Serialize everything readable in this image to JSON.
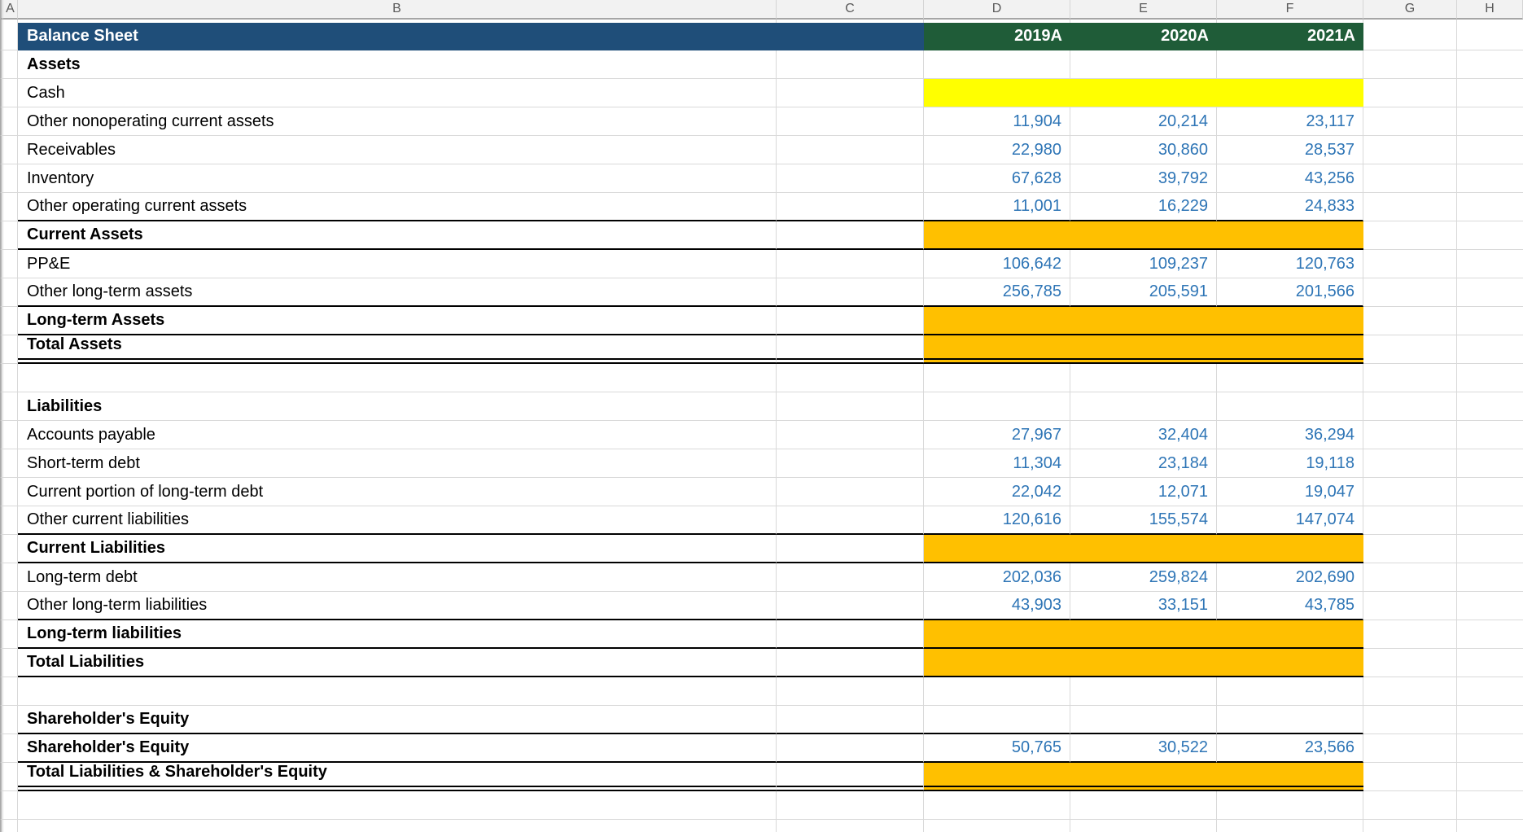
{
  "sheet": {
    "column_headers": [
      "A",
      "B",
      "C",
      "D",
      "E",
      "F",
      "G",
      "H"
    ],
    "title": "Balance Sheet",
    "year_headers": [
      "2019A",
      "2020A",
      "2021A"
    ],
    "colors": {
      "title_bg": "#1F4E79",
      "year_header_bg": "#1F5C38",
      "input_fill_yellow": "#FFFF00",
      "calc_fill_orange": "#FFC000",
      "number_text_blue": "#2E75B6",
      "gridline": "#D9D9D9"
    },
    "rows": [
      {
        "label": "Assets",
        "bold": true
      },
      {
        "label": "Cash",
        "fill": "yellow"
      },
      {
        "label": "Other nonoperating current assets",
        "values": [
          "11,904",
          "20,214",
          "23,117"
        ]
      },
      {
        "label": "Receivables",
        "values": [
          "22,980",
          "30,860",
          "28,537"
        ]
      },
      {
        "label": "Inventory",
        "values": [
          "67,628",
          "39,792",
          "43,256"
        ]
      },
      {
        "label": "Other operating current assets",
        "values": [
          "11,001",
          "16,229",
          "24,833"
        ],
        "border_bottom": "single"
      },
      {
        "label": "Current Assets",
        "bold": true,
        "fill": "orange",
        "border_bottom": "single"
      },
      {
        "label": "PP&E",
        "values": [
          "106,642",
          "109,237",
          "120,763"
        ]
      },
      {
        "label": "Other long-term assets",
        "values": [
          "256,785",
          "205,591",
          "201,566"
        ],
        "border_bottom": "single"
      },
      {
        "label": "Long-term Assets",
        "bold": true,
        "fill": "orange",
        "border_bottom": "single"
      },
      {
        "label": "Total Assets",
        "bold": true,
        "fill": "orange",
        "border_bottom": "double"
      },
      {
        "label": ""
      },
      {
        "label": "Liabilities",
        "bold": true
      },
      {
        "label": "Accounts payable",
        "values": [
          "27,967",
          "32,404",
          "36,294"
        ]
      },
      {
        "label": "Short-term debt",
        "values": [
          "11,304",
          "23,184",
          "19,118"
        ]
      },
      {
        "label": "Current portion of long-term debt",
        "values": [
          "22,042",
          "12,071",
          "19,047"
        ]
      },
      {
        "label": "Other current liabilities",
        "values": [
          "120,616",
          "155,574",
          "147,074"
        ],
        "border_bottom": "single"
      },
      {
        "label": "Current Liabilities",
        "bold": true,
        "fill": "orange",
        "border_bottom": "single"
      },
      {
        "label": "Long-term debt",
        "values": [
          "202,036",
          "259,824",
          "202,690"
        ]
      },
      {
        "label": "Other long-term liabilities",
        "values": [
          "43,903",
          "33,151",
          "43,785"
        ],
        "border_bottom": "single"
      },
      {
        "label": "Long-term liabilities",
        "bold": true,
        "fill": "orange",
        "border_bottom": "single"
      },
      {
        "label": "Total Liabilities",
        "bold": true,
        "fill": "orange",
        "border_bottom": "single"
      },
      {
        "label": ""
      },
      {
        "label": "Shareholder's Equity",
        "bold": true,
        "border_bottom": "single"
      },
      {
        "label": "Shareholder's Equity",
        "bold": true,
        "values": [
          "50,765",
          "30,522",
          "23,566"
        ],
        "border_bottom": "single"
      },
      {
        "label": "Total Liabilities & Shareholder's Equity",
        "bold": true,
        "fill": "orange",
        "border_bottom": "double"
      },
      {
        "label": ""
      },
      {
        "label": "",
        "partial": true
      }
    ]
  }
}
